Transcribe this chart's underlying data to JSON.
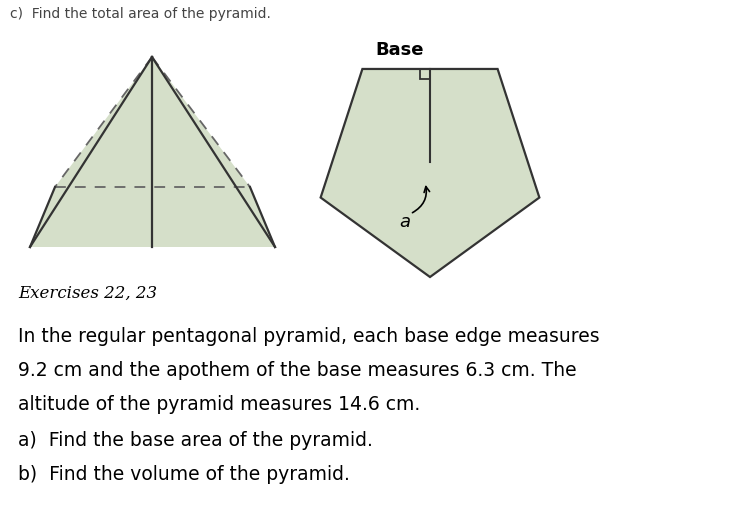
{
  "background_color": "#ffffff",
  "exercises_label": "Exercises 22, 23",
  "paragraph_lines": [
    "In the regular pentagonal pyramid, each base edge measures",
    "9.2 cm and the apothem of the base measures 6.3 cm. The",
    "altitude of the pyramid measures 14.6 cm."
  ],
  "items": [
    "a)  Find the base area of the pyramid.",
    "b)  Find the volume of the pyramid."
  ],
  "base_label": "Base",
  "apothem_label": "a",
  "fill_color": "#d5dfc9",
  "edge_color": "#333333",
  "dashed_color": "#666666"
}
